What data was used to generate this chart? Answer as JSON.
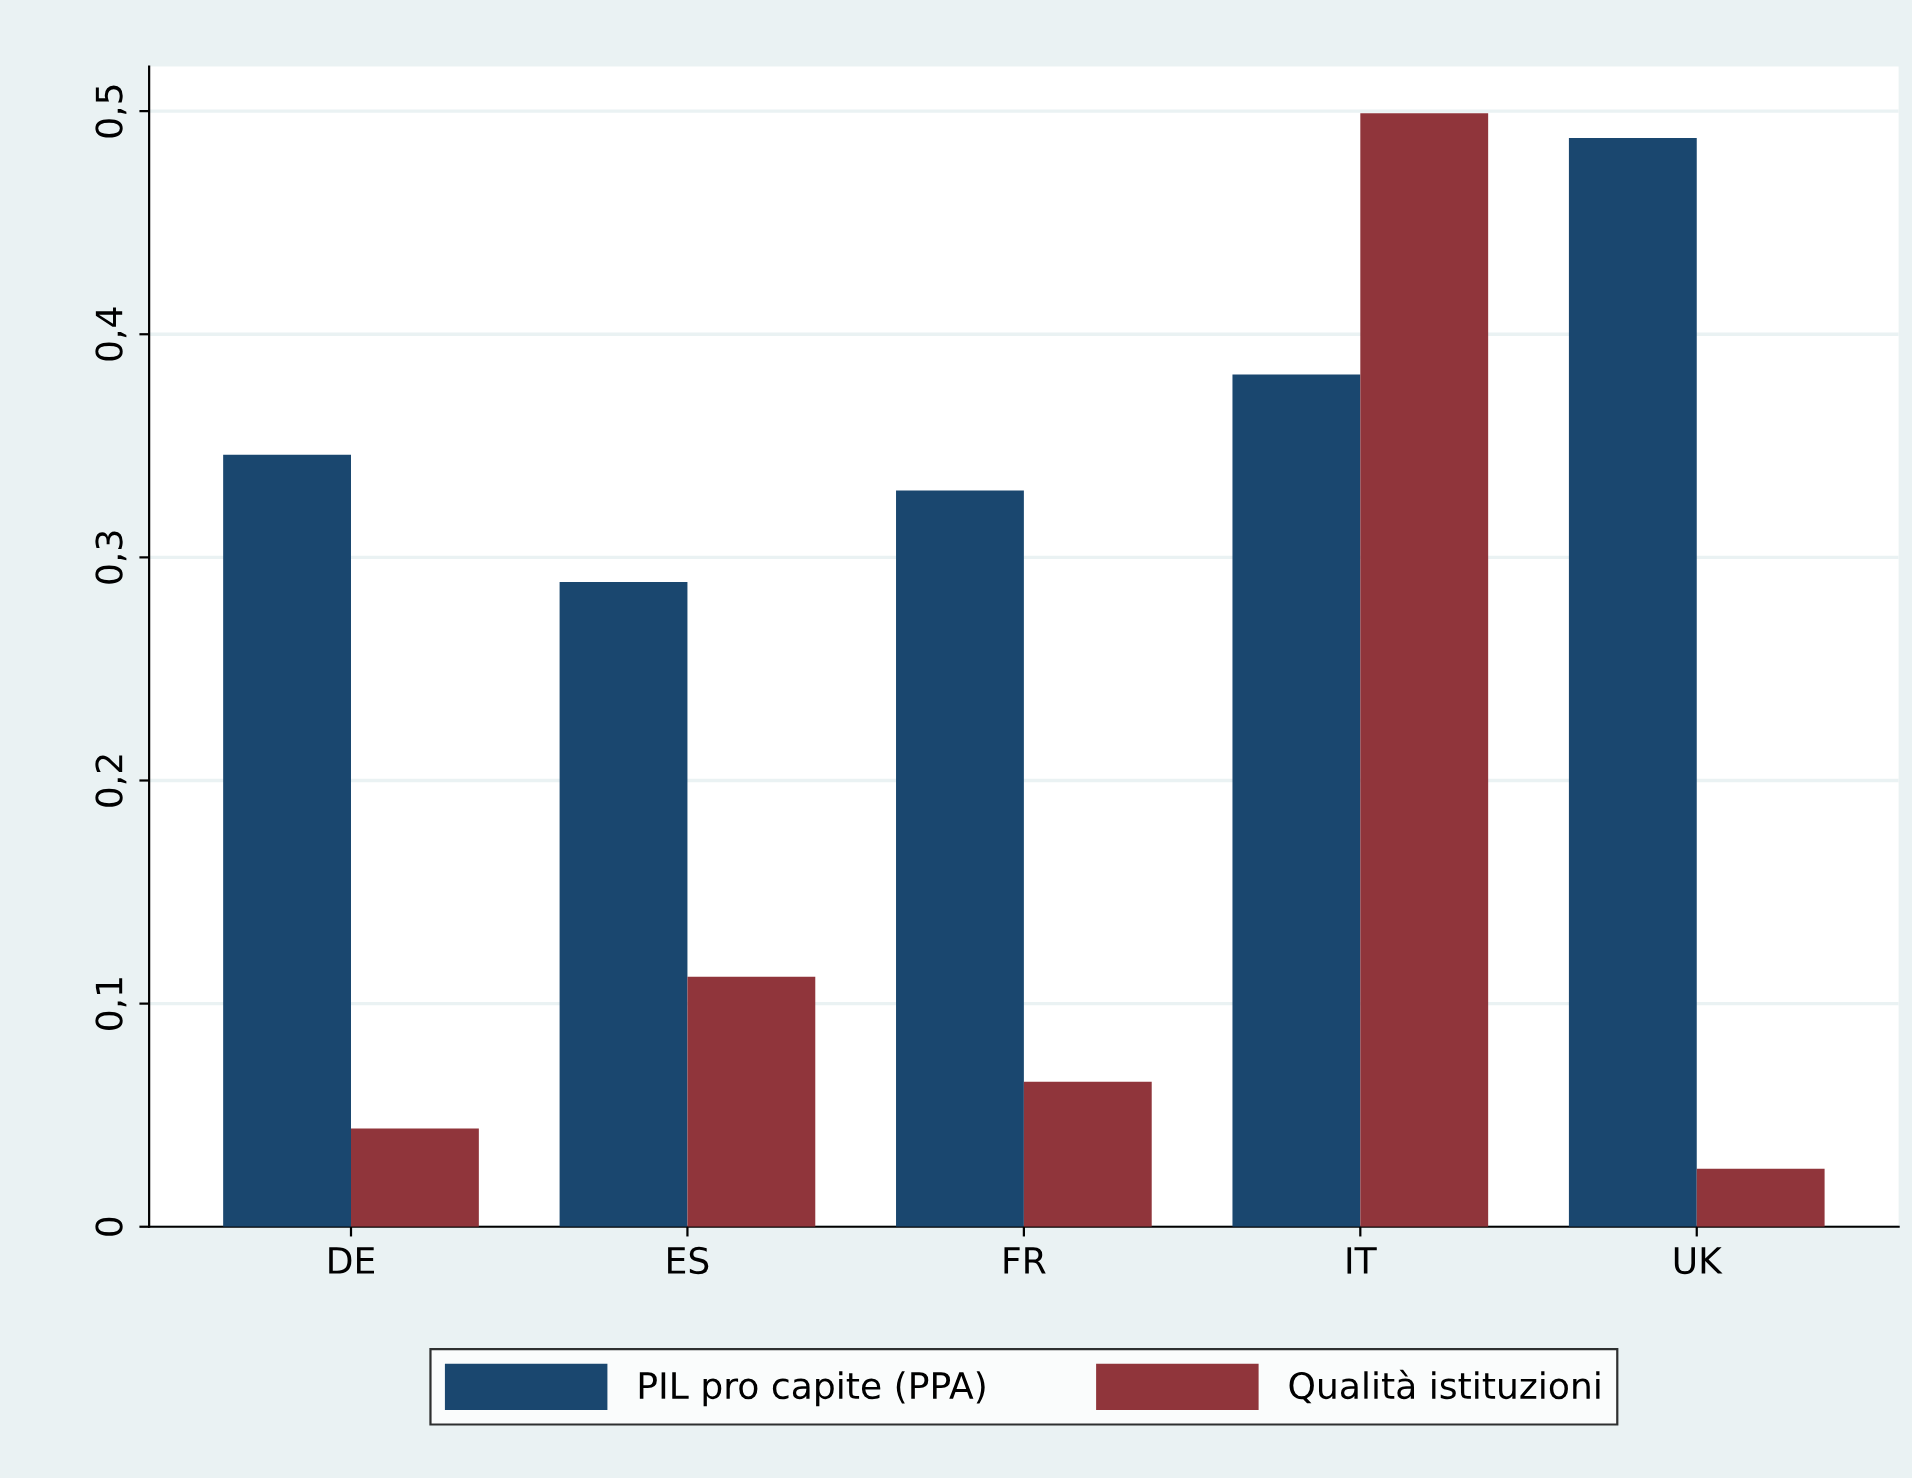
{
  "chart_data": {
    "type": "bar",
    "categories": [
      "DE",
      "ES",
      "FR",
      "IT",
      "UK"
    ],
    "series": [
      {
        "name": "PIL pro capite (PPA)",
        "color": "#1a476f",
        "values": [
          0.346,
          0.289,
          0.33,
          0.382,
          0.488
        ]
      },
      {
        "name": "Qualità istituzioni",
        "color": "#90353b",
        "values": [
          0.044,
          0.112,
          0.065,
          0.499,
          0.026
        ]
      }
    ],
    "ylim": [
      0,
      0.52
    ],
    "yticks": [
      {
        "value": 0,
        "label": "0"
      },
      {
        "value": 0.1,
        "label": "0,1"
      },
      {
        "value": 0.2,
        "label": "0,2"
      },
      {
        "value": 0.3,
        "label": "0,3"
      },
      {
        "value": 0.4,
        "label": "0,4"
      },
      {
        "value": 0.5,
        "label": "0,5"
      }
    ],
    "grid": "y",
    "legend": "bottom"
  }
}
